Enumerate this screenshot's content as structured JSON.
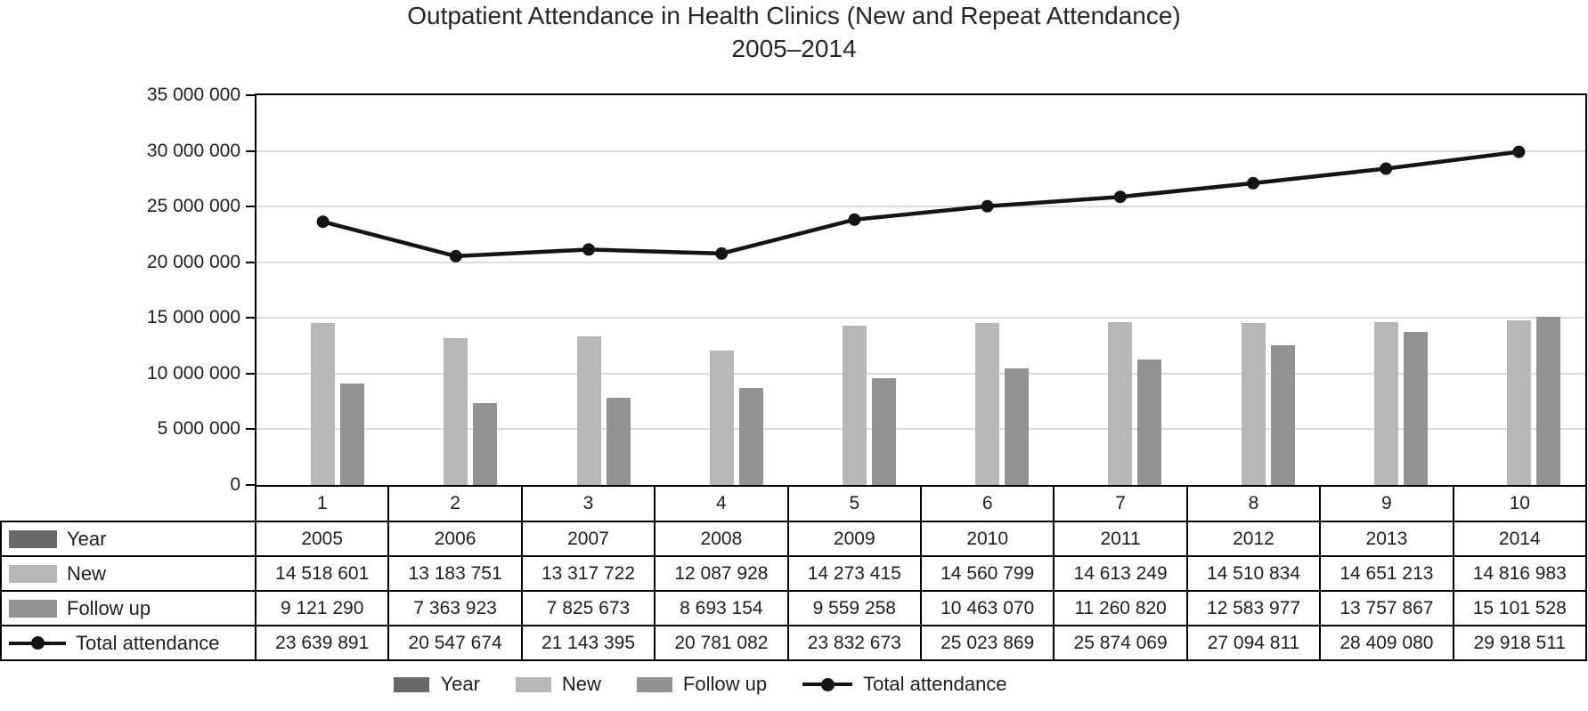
{
  "title": {
    "line1": "Outpatient Attendance in Health Clinics (New and Repeat Attendance)",
    "line2": "2005–2014"
  },
  "y_axis": {
    "min": 0,
    "max": 35000000,
    "step": 5000000,
    "tick_labels": [
      "0",
      "5 000 000",
      "10 000 000",
      "15 000 000",
      "20 000 000",
      "25 000 000",
      "30 000 000",
      "35 000 000"
    ]
  },
  "chart_data": {
    "type": "bar",
    "subtype": "combo-bar-line",
    "title": "Outpatient Attendance in Health Clinics (New and Repeat Attendance) 2005–2014",
    "xlabel": "",
    "ylabel": "",
    "ylim": [
      0,
      35000000
    ],
    "ytick_interval": 5000000,
    "grid": true,
    "legend_position": "bottom",
    "categories": [
      "1",
      "2",
      "3",
      "4",
      "5",
      "6",
      "7",
      "8",
      "9",
      "10"
    ],
    "series": [
      {
        "name": "Year",
        "chart_type": "bar",
        "color": "#696969",
        "values": [
          2005,
          2006,
          2007,
          2008,
          2009,
          2010,
          2011,
          2012,
          2013,
          2014
        ],
        "display": [
          "2005",
          "2006",
          "2007",
          "2008",
          "2009",
          "2010",
          "2011",
          "2012",
          "2013",
          "2014"
        ]
      },
      {
        "name": "New",
        "chart_type": "bar",
        "color": "#b7b7b7",
        "values": [
          14518601,
          13183751,
          13317722,
          12087928,
          14273415,
          14560799,
          14613249,
          14510834,
          14651213,
          14816983
        ],
        "display": [
          "14 518 601",
          "13 183 751",
          "13 317 722",
          "12 087 928",
          "14 273 415",
          "14 560 799",
          "14 613 249",
          "14 510 834",
          "14 651 213",
          "14 816 983"
        ]
      },
      {
        "name": "Follow up",
        "chart_type": "bar",
        "color": "#929292",
        "values": [
          9121290,
          7363923,
          7825673,
          8693154,
          9559258,
          10463070,
          11260820,
          12583977,
          13757867,
          15101528
        ],
        "display": [
          "9 121 290",
          "7 363 923",
          "7 825 673",
          "8 693 154",
          "9 559 258",
          "10 463 070",
          "11 260 820",
          "12 583 977",
          "13 757 867",
          "15 101 528"
        ]
      },
      {
        "name": "Total attendance",
        "chart_type": "line",
        "color": "#141414",
        "values": [
          23639891,
          20547674,
          21143395,
          20781082,
          23832673,
          25023869,
          25874069,
          27094811,
          28409080,
          29918511
        ],
        "display": [
          "23 639 891",
          "20 547 674",
          "21 143 395",
          "20 781 082",
          "23 832 673",
          "25 023 869",
          "25 874 069",
          "27 094 811",
          "28 409 080",
          "29 918 511"
        ]
      }
    ]
  },
  "colors": {
    "axis": "#000000",
    "gridline": "#dcdcdc",
    "line_series": "#141414",
    "text": "#1f1f1f"
  }
}
